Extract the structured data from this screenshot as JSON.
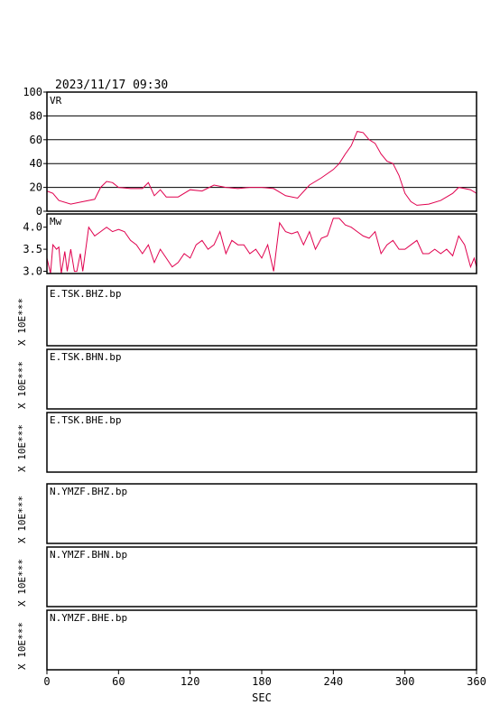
{
  "timestamp": "2023/11/17 09:30",
  "x_axis_label": "SEC",
  "scale_label": "X 10E***",
  "colors": {
    "series": "#e0004e",
    "frame": "#000000"
  },
  "chart_data": [
    {
      "type": "line",
      "title": "VR",
      "ylim": [
        0,
        100
      ],
      "xlim": [
        0,
        360
      ],
      "y_ticks": [
        "0",
        "20",
        "40",
        "60",
        "80",
        "100"
      ],
      "x_ticks": [
        "0",
        "60",
        "120",
        "180",
        "240",
        "300",
        "360"
      ],
      "grid": true,
      "xlabel": "SEC",
      "series": [
        {
          "x": [
            0,
            5,
            10,
            20,
            30,
            40,
            45,
            50,
            55,
            60,
            70,
            80,
            85,
            90,
            95,
            100,
            110,
            120,
            130,
            140,
            150,
            160,
            170,
            180,
            190,
            200,
            210,
            220,
            230,
            240,
            245,
            250,
            255,
            260,
            265,
            270,
            275,
            280,
            285,
            290,
            295,
            300,
            305,
            310,
            320,
            330,
            340,
            345,
            350,
            355,
            360
          ],
          "y": [
            17,
            15,
            9,
            6,
            8,
            10,
            20,
            25,
            24,
            20,
            19,
            19,
            24,
            13,
            18,
            12,
            12,
            18,
            17,
            22,
            20,
            19,
            20,
            20,
            19,
            13,
            11,
            22,
            28,
            35,
            40,
            48,
            55,
            67,
            66,
            60,
            57,
            48,
            42,
            40,
            30,
            15,
            8,
            5,
            6,
            9,
            15,
            20,
            19,
            18,
            15
          ]
        }
      ]
    },
    {
      "type": "line",
      "title": "Mw",
      "ylim": [
        2.95,
        4.3
      ],
      "xlim": [
        0,
        360
      ],
      "y_ticks": [
        "3.0",
        "3.5",
        "4.0"
      ],
      "x_ticks": [
        "0",
        "60",
        "120",
        "180",
        "240",
        "300",
        "360"
      ],
      "grid": false,
      "xlabel": "SEC",
      "series": [
        {
          "x": [
            0,
            3,
            5,
            8,
            10,
            12,
            15,
            17,
            20,
            23,
            25,
            28,
            30,
            35,
            40,
            45,
            50,
            55,
            60,
            65,
            70,
            75,
            80,
            85,
            90,
            95,
            100,
            105,
            110,
            115,
            120,
            125,
            130,
            135,
            140,
            145,
            150,
            155,
            160,
            165,
            170,
            175,
            180,
            185,
            190,
            195,
            200,
            205,
            210,
            215,
            220,
            225,
            230,
            235,
            240,
            245,
            250,
            255,
            260,
            265,
            270,
            275,
            280,
            285,
            290,
            295,
            300,
            305,
            310,
            315,
            320,
            325,
            330,
            335,
            340,
            345,
            350,
            355,
            358,
            360
          ],
          "y": [
            3.3,
            2.95,
            3.6,
            3.5,
            3.55,
            2.95,
            3.45,
            3.0,
            3.5,
            3.0,
            3.0,
            3.4,
            3.0,
            4.0,
            3.8,
            3.9,
            4.0,
            3.9,
            3.95,
            3.9,
            3.7,
            3.6,
            3.4,
            3.6,
            3.2,
            3.5,
            3.3,
            3.1,
            3.2,
            3.4,
            3.3,
            3.6,
            3.7,
            3.5,
            3.6,
            3.9,
            3.4,
            3.7,
            3.6,
            3.6,
            3.4,
            3.5,
            3.3,
            3.6,
            3.0,
            4.1,
            3.9,
            3.85,
            3.9,
            3.6,
            3.9,
            3.5,
            3.75,
            3.8,
            4.2,
            4.2,
            4.05,
            4.0,
            3.9,
            3.8,
            3.75,
            3.9,
            3.4,
            3.6,
            3.7,
            3.5,
            3.5,
            3.6,
            3.7,
            3.4,
            3.4,
            3.5,
            3.4,
            3.5,
            3.35,
            3.8,
            3.6,
            3.1,
            3.3,
            3.1
          ]
        }
      ]
    }
  ],
  "waveform_panels": [
    {
      "label": "E.TSK.BHZ.bp"
    },
    {
      "label": "E.TSK.BHN.bp"
    },
    {
      "label": "E.TSK.BHE.bp"
    },
    {
      "label": "N.YMZF.BHZ.bp"
    },
    {
      "label": "N.YMZF.BHN.bp"
    },
    {
      "label": "N.YMZF.BHE.bp"
    }
  ]
}
